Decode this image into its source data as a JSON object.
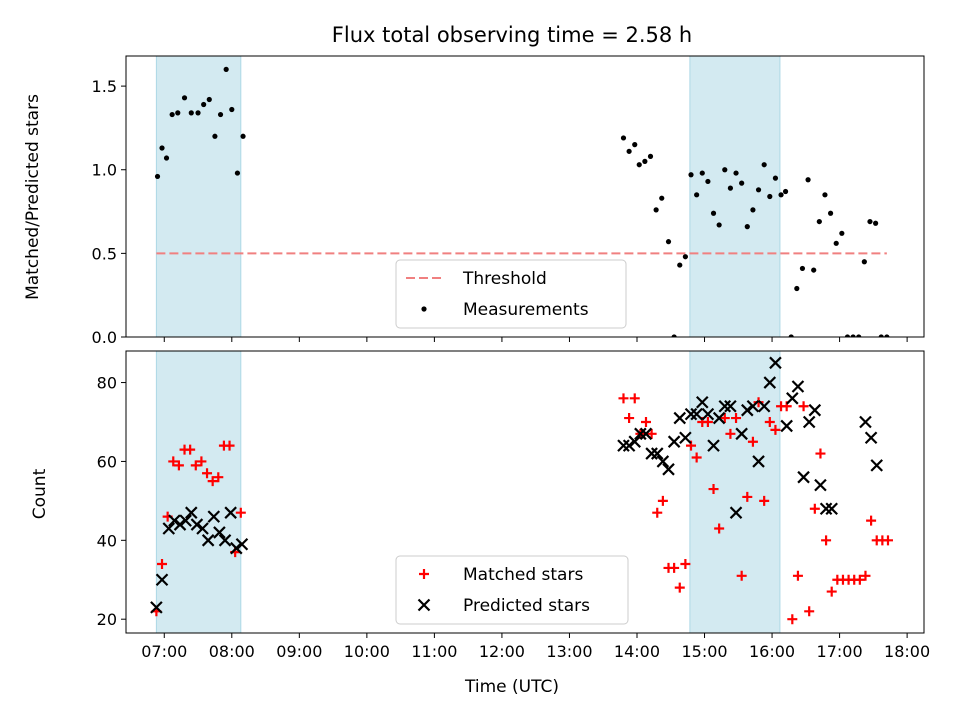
{
  "chart_data": [
    {
      "type": "scatter",
      "title": "Flux total observing time = 2.58 h",
      "xlabel": "",
      "ylabel": "Matched/Predicted stars",
      "xlim": [
        "06:26",
        "18:15"
      ],
      "ylim": [
        0,
        1.68
      ],
      "x_ticks": [
        "07:00",
        "08:00",
        "09:00",
        "10:00",
        "11:00",
        "12:00",
        "13:00",
        "14:00",
        "15:00",
        "16:00",
        "17:00",
        "18:00"
      ],
      "y_ticks": [
        "0.0",
        "0.5",
        "1.0",
        "1.5"
      ],
      "y_tick_values": [
        0,
        0.5,
        1.0,
        1.5
      ],
      "legend_position": "lower-center",
      "shaded_intervals": [
        {
          "start": "06:53",
          "end": "08:08",
          "color": "#d3eaf1"
        },
        {
          "start": "14:47",
          "end": "16:07",
          "color": "#d3eaf1"
        }
      ],
      "series": [
        {
          "name": "Threshold",
          "kind": "hline",
          "y": 0.5,
          "x_range": [
            "06:53",
            "17:42"
          ],
          "color": "#f08080"
        },
        {
          "name": "Measurements",
          "kind": "points",
          "color": "#000000",
          "points": [
            [
              "06:54",
              0.96
            ],
            [
              "06:58",
              1.13
            ],
            [
              "07:02",
              1.07
            ],
            [
              "07:07",
              1.33
            ],
            [
              "07:12",
              1.34
            ],
            [
              "07:18",
              1.43
            ],
            [
              "07:24",
              1.34
            ],
            [
              "07:30",
              1.34
            ],
            [
              "07:35",
              1.39
            ],
            [
              "07:40",
              1.42
            ],
            [
              "07:45",
              1.2
            ],
            [
              "07:50",
              1.33
            ],
            [
              "07:55",
              1.6
            ],
            [
              "08:00",
              1.36
            ],
            [
              "08:05",
              0.98
            ],
            [
              "08:10",
              1.2
            ],
            [
              "13:48",
              1.19
            ],
            [
              "13:53",
              1.11
            ],
            [
              "13:58",
              1.15
            ],
            [
              "14:02",
              1.03
            ],
            [
              "14:07",
              1.05
            ],
            [
              "14:12",
              1.08
            ],
            [
              "14:17",
              0.76
            ],
            [
              "14:22",
              0.83
            ],
            [
              "14:28",
              0.57
            ],
            [
              "14:33",
              0.0
            ],
            [
              "14:38",
              0.43
            ],
            [
              "14:43",
              0.48
            ],
            [
              "14:48",
              0.97
            ],
            [
              "14:53",
              0.85
            ],
            [
              "14:58",
              0.98
            ],
            [
              "15:03",
              0.93
            ],
            [
              "15:08",
              0.74
            ],
            [
              "15:13",
              0.67
            ],
            [
              "15:18",
              1.0
            ],
            [
              "15:23",
              0.89
            ],
            [
              "15:28",
              0.98
            ],
            [
              "15:33",
              0.92
            ],
            [
              "15:38",
              0.66
            ],
            [
              "15:43",
              0.76
            ],
            [
              "15:48",
              0.88
            ],
            [
              "15:53",
              1.03
            ],
            [
              "15:58",
              0.84
            ],
            [
              "16:03",
              0.95
            ],
            [
              "16:08",
              0.85
            ],
            [
              "16:12",
              0.87
            ],
            [
              "16:17",
              0.0
            ],
            [
              "16:22",
              0.29
            ],
            [
              "16:27",
              0.41
            ],
            [
              "16:32",
              0.94
            ],
            [
              "16:37",
              0.4
            ],
            [
              "16:42",
              0.69
            ],
            [
              "16:47",
              0.85
            ],
            [
              "16:52",
              0.74
            ],
            [
              "16:57",
              0.56
            ],
            [
              "17:02",
              0.62
            ],
            [
              "17:07",
              0.0
            ],
            [
              "17:12",
              0.0
            ],
            [
              "17:17",
              0.0
            ],
            [
              "17:22",
              0.45
            ],
            [
              "17:27",
              0.69
            ],
            [
              "17:32",
              0.68
            ],
            [
              "17:37",
              0.0
            ],
            [
              "17:42",
              0.0
            ]
          ]
        }
      ]
    },
    {
      "type": "scatter",
      "title": "",
      "xlabel": "Time (UTC)",
      "ylabel": "Count",
      "xlim": [
        "06:26",
        "18:15"
      ],
      "ylim": [
        16.5,
        88
      ],
      "x_ticks": [
        "07:00",
        "08:00",
        "09:00",
        "10:00",
        "11:00",
        "12:00",
        "13:00",
        "14:00",
        "15:00",
        "16:00",
        "17:00",
        "18:00"
      ],
      "y_ticks": [
        "20",
        "40",
        "60",
        "80"
      ],
      "y_tick_values": [
        20,
        40,
        60,
        80
      ],
      "legend_position": "lower-center",
      "shaded_intervals": [
        {
          "start": "06:53",
          "end": "08:08",
          "color": "#d3eaf1"
        },
        {
          "start": "14:47",
          "end": "16:07",
          "color": "#d3eaf1"
        }
      ],
      "series": [
        {
          "name": "Matched stars",
          "kind": "plus",
          "color": "#ff0000",
          "points": [
            [
              "06:53",
              22
            ],
            [
              "06:58",
              34
            ],
            [
              "07:03",
              46
            ],
            [
              "07:08",
              60
            ],
            [
              "07:13",
              59
            ],
            [
              "07:18",
              63
            ],
            [
              "07:23",
              63
            ],
            [
              "07:28",
              59
            ],
            [
              "07:33",
              60
            ],
            [
              "07:38",
              57
            ],
            [
              "07:43",
              55
            ],
            [
              "07:48",
              56
            ],
            [
              "07:53",
              64
            ],
            [
              "07:58",
              64
            ],
            [
              "08:03",
              37
            ],
            [
              "08:08",
              47
            ],
            [
              "13:48",
              76
            ],
            [
              "13:53",
              71
            ],
            [
              "13:58",
              76
            ],
            [
              "14:03",
              67
            ],
            [
              "14:08",
              70
            ],
            [
              "14:13",
              67
            ],
            [
              "14:18",
              47
            ],
            [
              "14:23",
              50
            ],
            [
              "14:28",
              33
            ],
            [
              "14:33",
              33
            ],
            [
              "14:38",
              28
            ],
            [
              "14:43",
              34
            ],
            [
              "14:48",
              64
            ],
            [
              "14:53",
              61
            ],
            [
              "14:58",
              70
            ],
            [
              "15:03",
              70
            ],
            [
              "15:08",
              53
            ],
            [
              "15:13",
              43
            ],
            [
              "15:18",
              71
            ],
            [
              "15:23",
              67
            ],
            [
              "15:28",
              71
            ],
            [
              "15:33",
              31
            ],
            [
              "15:38",
              51
            ],
            [
              "15:43",
              65
            ],
            [
              "15:48",
              75
            ],
            [
              "15:53",
              50
            ],
            [
              "15:58",
              70
            ],
            [
              "16:03",
              68
            ],
            [
              "16:08",
              74
            ],
            [
              "16:13",
              74
            ],
            [
              "16:18",
              20
            ],
            [
              "16:23",
              31
            ],
            [
              "16:28",
              74
            ],
            [
              "16:33",
              22
            ],
            [
              "16:38",
              48
            ],
            [
              "16:43",
              62
            ],
            [
              "16:48",
              40
            ],
            [
              "16:53",
              27
            ],
            [
              "16:58",
              30
            ],
            [
              "17:03",
              30
            ],
            [
              "17:08",
              30
            ],
            [
              "17:13",
              30
            ],
            [
              "17:18",
              30
            ],
            [
              "17:23",
              31
            ],
            [
              "17:28",
              45
            ],
            [
              "17:33",
              40
            ],
            [
              "17:38",
              40
            ],
            [
              "17:43",
              40
            ]
          ]
        },
        {
          "name": "Predicted stars",
          "kind": "cross",
          "color": "#000000",
          "points": [
            [
              "06:53",
              23
            ],
            [
              "06:58",
              30
            ],
            [
              "07:04",
              43
            ],
            [
              "07:09",
              45
            ],
            [
              "07:14",
              44
            ],
            [
              "07:19",
              45
            ],
            [
              "07:24",
              47
            ],
            [
              "07:29",
              44
            ],
            [
              "07:34",
              43
            ],
            [
              "07:39",
              40
            ],
            [
              "07:44",
              46
            ],
            [
              "07:49",
              42
            ],
            [
              "07:54",
              40
            ],
            [
              "07:59",
              47
            ],
            [
              "08:04",
              38
            ],
            [
              "08:09",
              39
            ],
            [
              "13:48",
              64
            ],
            [
              "13:53",
              64
            ],
            [
              "13:58",
              65
            ],
            [
              "14:03",
              67
            ],
            [
              "14:08",
              67
            ],
            [
              "14:13",
              62
            ],
            [
              "14:18",
              62
            ],
            [
              "14:23",
              60
            ],
            [
              "14:28",
              58
            ],
            [
              "14:33",
              65
            ],
            [
              "14:38",
              71
            ],
            [
              "14:43",
              66
            ],
            [
              "14:48",
              72
            ],
            [
              "14:53",
              72
            ],
            [
              "14:58",
              75
            ],
            [
              "15:03",
              72
            ],
            [
              "15:08",
              64
            ],
            [
              "15:13",
              71
            ],
            [
              "15:18",
              74
            ],
            [
              "15:23",
              74
            ],
            [
              "15:28",
              47
            ],
            [
              "15:33",
              67
            ],
            [
              "15:38",
              73
            ],
            [
              "15:43",
              74
            ],
            [
              "15:48",
              60
            ],
            [
              "15:53",
              74
            ],
            [
              "15:58",
              80
            ],
            [
              "16:03",
              85
            ],
            [
              "16:13",
              69
            ],
            [
              "16:18",
              76
            ],
            [
              "16:23",
              79
            ],
            [
              "16:28",
              56
            ],
            [
              "16:33",
              70
            ],
            [
              "16:38",
              73
            ],
            [
              "16:43",
              54
            ],
            [
              "16:48",
              48
            ],
            [
              "16:53",
              48
            ],
            [
              "17:23",
              70
            ],
            [
              "17:28",
              66
            ],
            [
              "17:33",
              59
            ]
          ]
        }
      ]
    }
  ]
}
